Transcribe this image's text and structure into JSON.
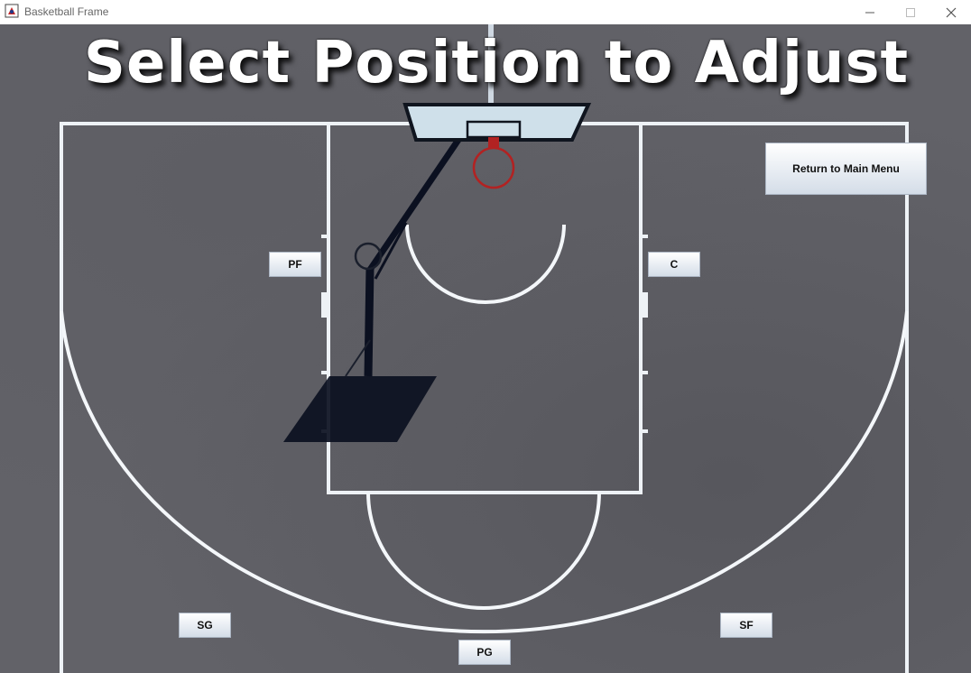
{
  "window": {
    "title": "Basketball Frame"
  },
  "court": {
    "heading": "Select Position to Adjust"
  },
  "buttons": {
    "return_menu": "Return to Main Menu",
    "pf": "PF",
    "c": "C",
    "sg": "SG",
    "sf": "SF",
    "pg": "PG"
  },
  "colors": {
    "court": "#626268",
    "lines": "#ffffff",
    "rim": "#b22222",
    "shadow": "#0b1020"
  }
}
